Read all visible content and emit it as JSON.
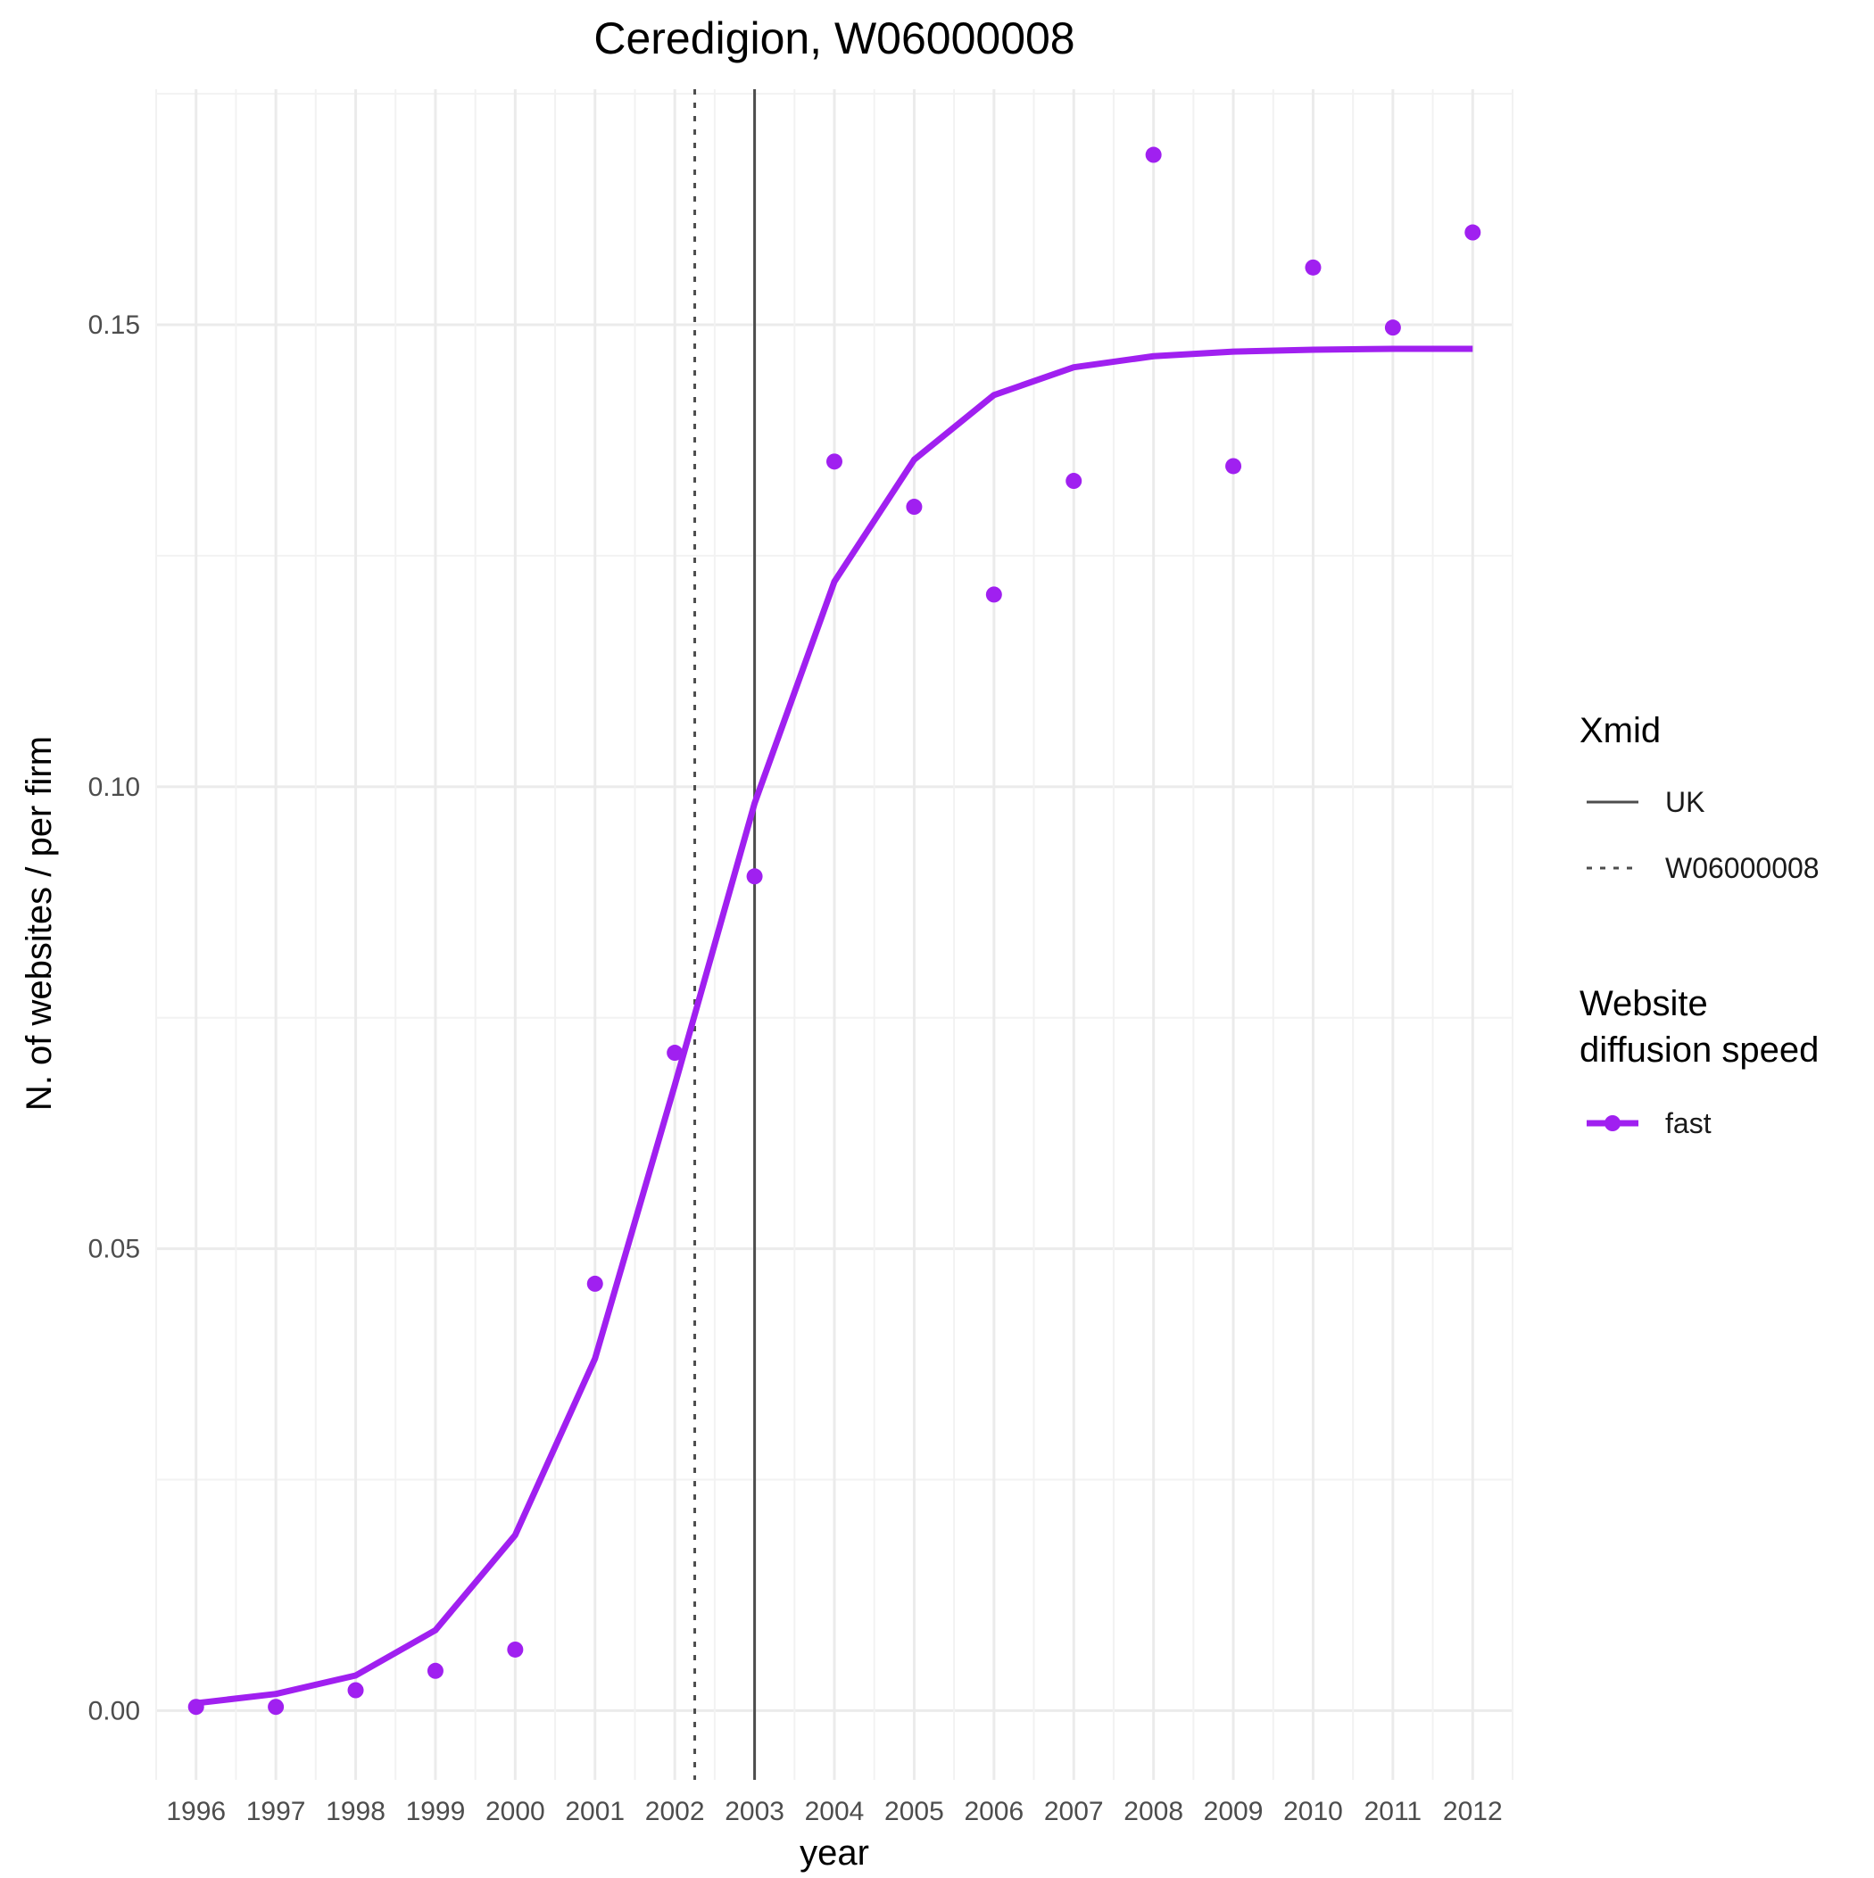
{
  "chart_data": {
    "type": "line",
    "title": "Ceredigion, W06000008",
    "xlabel": "year",
    "ylabel": "N. of websites / per firm",
    "x": [
      1996,
      1997,
      1998,
      1999,
      2000,
      2001,
      2002,
      2003,
      2004,
      2005,
      2006,
      2007,
      2008,
      2009,
      2010,
      2011,
      2012
    ],
    "xlim": [
      1995.5,
      2012.5
    ],
    "ylim": [
      -0.0075,
      0.1755
    ],
    "y_ticks": [
      0.0,
      0.05,
      0.1,
      0.15
    ],
    "y_tick_labels": [
      "0.00",
      "0.05",
      "0.10",
      "0.15"
    ],
    "x_tick_labels": [
      "1996",
      "1997",
      "1998",
      "1999",
      "2000",
      "2001",
      "2002",
      "2003",
      "2004",
      "2005",
      "2006",
      "2007",
      "2008",
      "2009",
      "2010",
      "2011",
      "2012"
    ],
    "grid": true,
    "series": [
      {
        "name": "fast",
        "color": "#a020f0",
        "points": [
          0.0004,
          0.0004,
          0.0022,
          0.0043,
          0.0066,
          0.0462,
          0.0712,
          0.0903,
          0.1352,
          0.1303,
          0.1208,
          0.1331,
          0.1684,
          0.1347,
          0.1562,
          0.1497,
          0.16
        ],
        "fit": [
          0.0008,
          0.0018,
          0.0038,
          0.0087,
          0.019,
          0.0381,
          0.0677,
          0.0982,
          0.1222,
          0.1354,
          0.1424,
          0.1454,
          0.1466,
          0.1471,
          0.1473,
          0.1474,
          0.1474
        ]
      }
    ],
    "vlines": [
      {
        "name": "UK",
        "x": 2003.0,
        "style": "solid",
        "color": "#4d4d4d"
      },
      {
        "name": "W06000008",
        "x": 2002.25,
        "style": "dotted",
        "color": "#4d4d4d"
      }
    ],
    "legend": {
      "placement": "right",
      "xmid_title": "Xmid",
      "xmid_items": [
        "UK",
        "W06000008"
      ],
      "speed_title_line1": "Website",
      "speed_title_line2": "diffusion speed",
      "speed_items": [
        "fast"
      ]
    }
  }
}
